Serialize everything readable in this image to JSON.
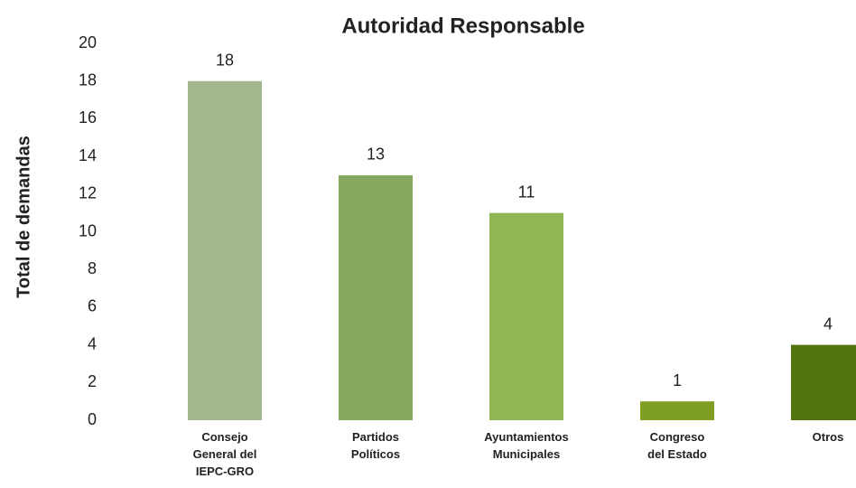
{
  "chart_data": {
    "type": "bar",
    "title": "Autoridad Responsable",
    "y_axis_label": "Total de demandas",
    "categories": [
      [
        "Consejo",
        "General del",
        "IEPC-GRO"
      ],
      [
        "Partidos",
        "Políticos"
      ],
      [
        "Ayuntamientos",
        "Municipales"
      ],
      [
        "Congreso",
        "del Estado"
      ],
      [
        "Otros"
      ]
    ],
    "values": [
      18,
      13,
      11,
      1,
      4
    ],
    "colors": [
      "#a3b78f",
      "#86a85e",
      "#90b653",
      "#7f9f23",
      "#53740f"
    ],
    "ylim": [
      0,
      20
    ],
    "yticks": [
      0,
      2,
      4,
      6,
      8,
      10,
      12,
      14,
      16,
      18,
      20
    ],
    "grid": false
  }
}
